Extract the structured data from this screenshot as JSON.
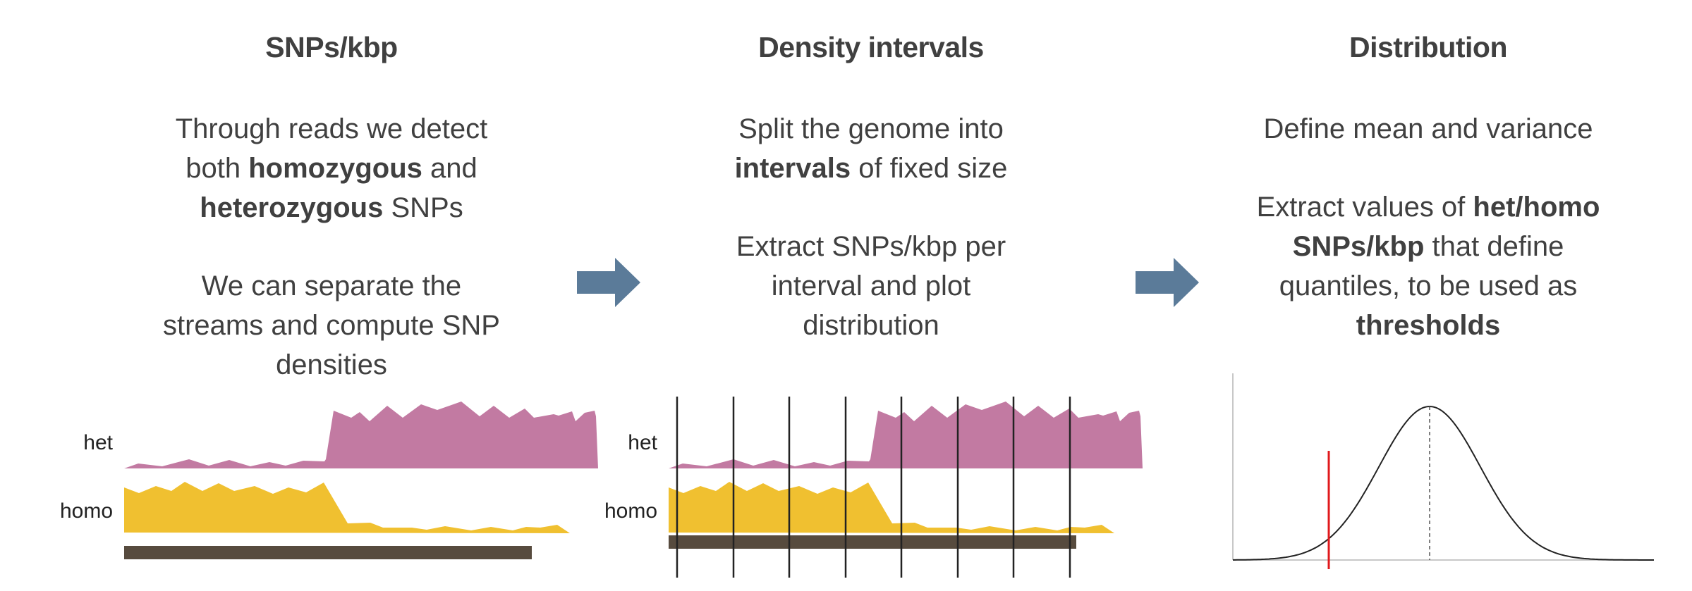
{
  "panels": [
    {
      "title": "SNPs/kbp",
      "para1": [
        {
          "t": "Through reads we detect"
        },
        {
          "t": "both "
        },
        {
          "b": "homozygous"
        },
        {
          "t": " and"
        },
        {
          "b": "heterozygous"
        },
        {
          "t": " SNPs"
        }
      ],
      "para2": [
        "We can separate the",
        "streams and compute SNP",
        "densities"
      ],
      "het_label": "het",
      "homo_label": "homo"
    },
    {
      "title": "Density intervals",
      "para1": [
        "Split the genome into"
      ],
      "para1_bold": "intervals",
      "para1_rest": " of fixed size",
      "para2": [
        "Extract SNPs/kbp per",
        "interval and plot",
        "distribution"
      ],
      "het_label": "het",
      "homo_label": "homo"
    },
    {
      "title": "Distribution",
      "para1": "Define mean and variance",
      "para2_line1_text": "Extract values of ",
      "para2_line1_bold": "het/homo",
      "para2_line2_bold": "SNPs/kbp",
      "para2_line2_text": " that define",
      "para2_line3": "quantiles, to be used as",
      "para2_line4_bold": "thresholds"
    }
  ],
  "colors": {
    "het": "#c27aa2",
    "homo": "#f0c030",
    "genome_bar": "#574b3e",
    "arrow": "#5b7b99",
    "threshold": "#e0191c",
    "text": "#404040"
  },
  "icons": [
    "right-arrow-icon",
    "right-arrow-icon"
  ]
}
